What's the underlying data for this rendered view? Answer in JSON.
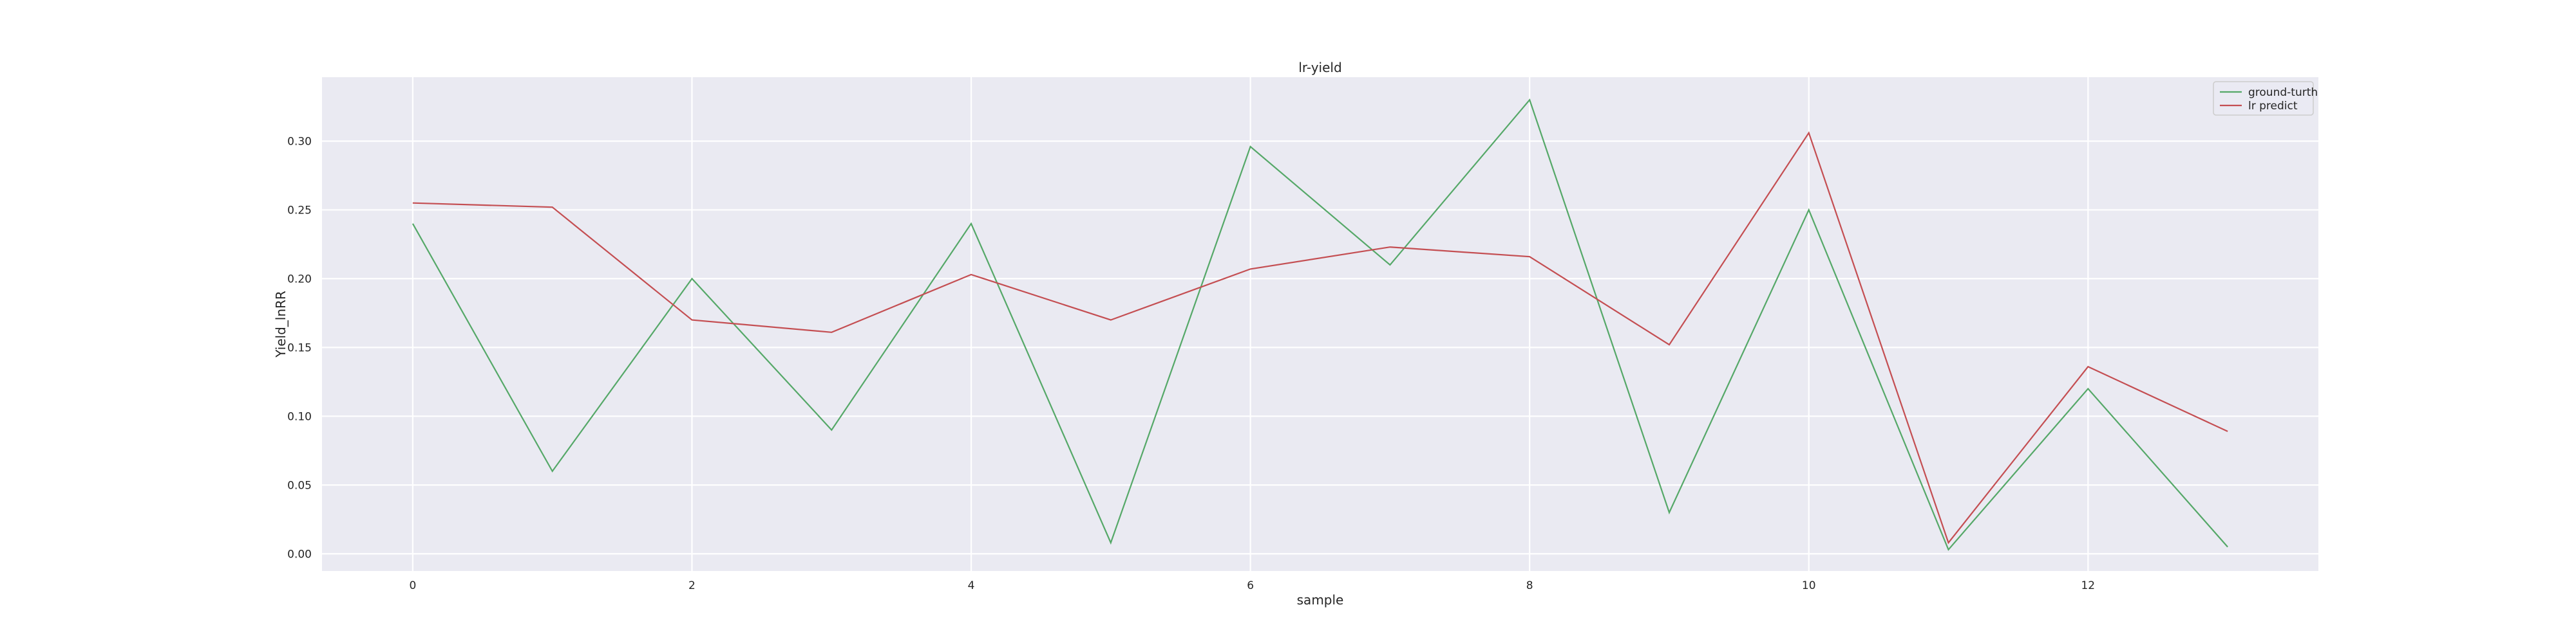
{
  "chart_data": {
    "type": "line",
    "title": "lr-yield",
    "xlabel": "sample",
    "ylabel": "Yield_lnRR",
    "xlim": [
      -0.65,
      13.65
    ],
    "ylim": [
      -0.0125,
      0.3465
    ],
    "x_ticks": [
      0,
      2,
      4,
      6,
      8,
      10,
      12
    ],
    "y_ticks": [
      0.0,
      0.05,
      0.1,
      0.15,
      0.2,
      0.25,
      0.3
    ],
    "grid": true,
    "legend_position": "top-right",
    "x": [
      0,
      1,
      2,
      3,
      4,
      5,
      6,
      7,
      8,
      9,
      10,
      11,
      12,
      13
    ],
    "series": [
      {
        "name": "ground-turth",
        "color": "#55a868",
        "values": [
          0.24,
          0.06,
          0.2,
          0.09,
          0.24,
          0.008,
          0.296,
          0.21,
          0.33,
          0.03,
          0.25,
          0.003,
          0.12,
          0.005
        ]
      },
      {
        "name": "lr predict",
        "color": "#c44e52",
        "values": [
          0.255,
          0.252,
          0.17,
          0.161,
          0.203,
          0.17,
          0.207,
          0.223,
          0.216,
          0.152,
          0.306,
          0.008,
          0.136,
          0.089
        ]
      }
    ]
  }
}
